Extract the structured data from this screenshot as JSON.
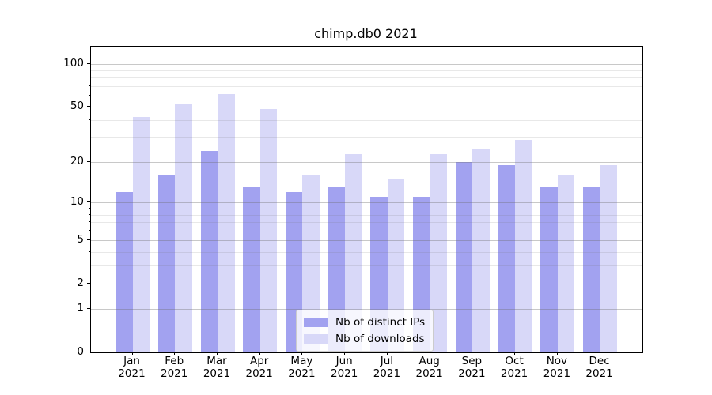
{
  "title": "chimp.db0 2021",
  "chart_data": {
    "type": "bar",
    "title": "chimp.db0 2021",
    "categories": [
      "Jan 2021",
      "Feb 2021",
      "Mar 2021",
      "Apr 2021",
      "May 2021",
      "Jun 2021",
      "Jul 2021",
      "Aug 2021",
      "Sep 2021",
      "Oct 2021",
      "Nov 2021",
      "Dec 2021"
    ],
    "months": [
      "Jan",
      "Feb",
      "Mar",
      "Apr",
      "May",
      "Jun",
      "Jul",
      "Aug",
      "Sep",
      "Oct",
      "Nov",
      "Dec"
    ],
    "year": "2021",
    "series": [
      {
        "name": "Nb of distinct IPs",
        "color": "#a2a2f0",
        "values": [
          12,
          16,
          24,
          13,
          12,
          13,
          11,
          11,
          20,
          19,
          13,
          13
        ]
      },
      {
        "name": "Nb of downloads",
        "color": "#d8d8f8",
        "values": [
          42,
          52,
          61,
          48,
          16,
          23,
          15,
          23,
          25,
          29,
          16,
          19
        ]
      }
    ],
    "xlabel": "",
    "ylabel": "",
    "yscale": "log1p",
    "ylim": [
      0,
      132
    ],
    "y_major_ticks": [
      0,
      1,
      2,
      5,
      10,
      20,
      50,
      100
    ],
    "y_minor_ticks": [
      3,
      4,
      6,
      7,
      8,
      9,
      30,
      40,
      60,
      70,
      80,
      90
    ],
    "grid": "major and minor horizontal gridlines drawn above bars",
    "legend_position": "inside plot, lower center-right"
  }
}
